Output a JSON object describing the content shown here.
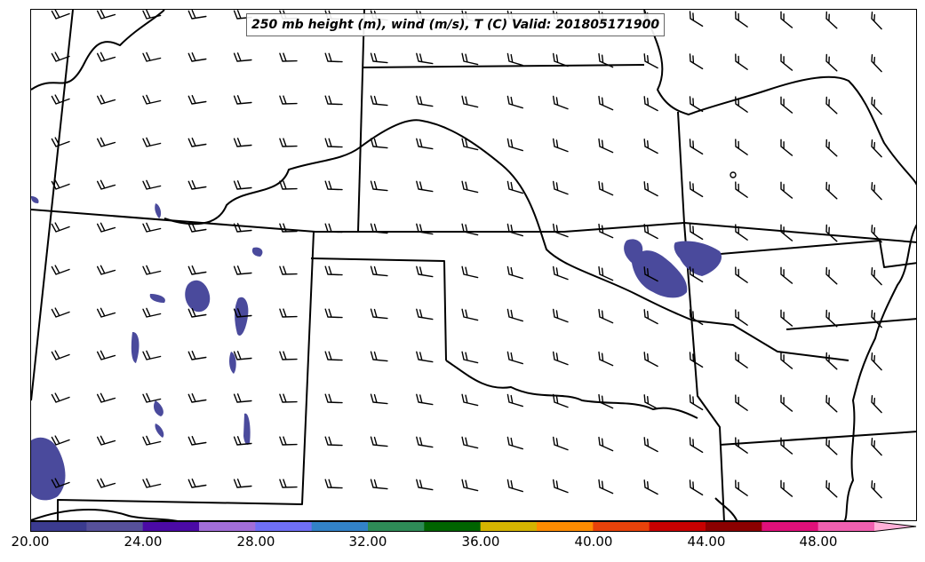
{
  "title": "250 mb height (m), wind (m/s), T (C) Valid: 201805171900",
  "colorbar": {
    "colors": [
      "#3b3b8f",
      "#56509a",
      "#4b0aa5",
      "#a26ed8",
      "#6f6ff5",
      "#3282c8",
      "#2e8b57",
      "#006400",
      "#d4b400",
      "#ff8c00",
      "#e8420a",
      "#c80000",
      "#8b0000",
      "#e0107a",
      "#f060b0",
      "#ffb0d8"
    ],
    "tick_labels": [
      "20.00",
      "24.00",
      "28.00",
      "32.00",
      "36.00",
      "40.00",
      "44.00",
      "48.00"
    ],
    "min": 20,
    "max": 52,
    "extend": "max"
  },
  "colors": {
    "temperature_fill": "#4a4a9c",
    "boundary": "#000000"
  }
}
